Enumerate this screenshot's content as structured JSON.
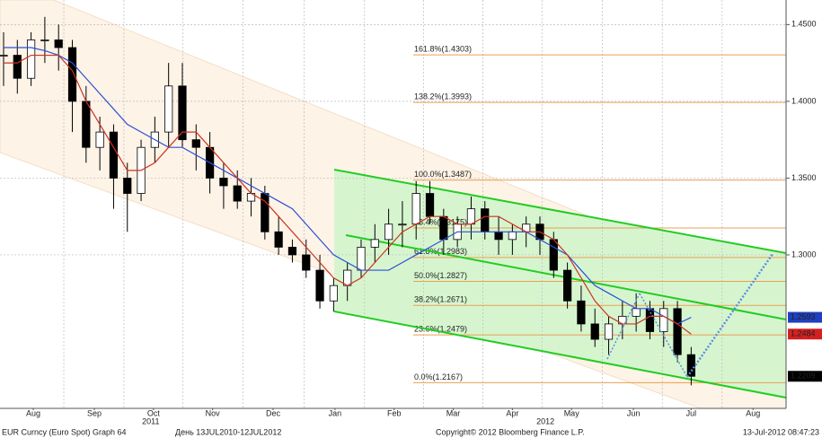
{
  "chart_data": {
    "type": "candlestick",
    "xlim": [
      -0.26,
      56.9
    ],
    "ylim": [
      1.2,
      1.466
    ],
    "xticks": [
      {
        "value": 2.16,
        "label": "Aug"
      },
      {
        "value": 6.6,
        "label": "Sep"
      },
      {
        "value": 10.9,
        "label": "Oct"
      },
      {
        "value": 15.2,
        "label": "Nov"
      },
      {
        "value": 19.6,
        "label": "Dec"
      },
      {
        "value": 24.1,
        "label": "Jan"
      },
      {
        "value": 28.4,
        "label": "Feb"
      },
      {
        "value": 32.7,
        "label": "Mar"
      },
      {
        "value": 37.0,
        "label": "Apr"
      },
      {
        "value": 41.3,
        "label": "May"
      },
      {
        "value": 45.8,
        "label": "Jun"
      },
      {
        "value": 50.0,
        "label": "Jul"
      },
      {
        "value": 54.5,
        "label": "Aug"
      }
    ],
    "year_labels": [
      {
        "value": 10.7,
        "label": "2011"
      },
      {
        "value": 39.4,
        "label": "2012"
      }
    ],
    "yticks": [
      {
        "value": 1.45,
        "label": "1.4500"
      },
      {
        "value": 1.4,
        "label": "1.4000"
      },
      {
        "value": 1.35,
        "label": "1.3500"
      },
      {
        "value": 1.3,
        "label": "1.3000"
      }
    ],
    "grid": true,
    "open": [
      1.43,
      1.43,
      1.415,
      1.44,
      1.44,
      1.435,
      1.4,
      1.37,
      1.38,
      1.35,
      1.34,
      1.37,
      1.38,
      1.41,
      1.375,
      1.37,
      1.35,
      1.345,
      1.335,
      1.34,
      1.315,
      1.305,
      1.3,
      1.29,
      1.27,
      1.28,
      1.29,
      1.305,
      1.31,
      1.32,
      1.32,
      1.34,
      1.325,
      1.31,
      1.32,
      1.33,
      1.315,
      1.31,
      1.315,
      1.32,
      1.31,
      1.29,
      1.27,
      1.255,
      1.245,
      1.255,
      1.26,
      1.265,
      1.25,
      1.265,
      1.235
    ],
    "high": [
      1.445,
      1.44,
      1.445,
      1.455,
      1.45,
      1.44,
      1.41,
      1.39,
      1.385,
      1.36,
      1.375,
      1.39,
      1.425,
      1.425,
      1.385,
      1.38,
      1.36,
      1.355,
      1.35,
      1.345,
      1.325,
      1.31,
      1.31,
      1.3,
      1.285,
      1.295,
      1.31,
      1.32,
      1.33,
      1.335,
      1.348,
      1.348,
      1.33,
      1.325,
      1.338,
      1.335,
      1.325,
      1.32,
      1.325,
      1.325,
      1.315,
      1.295,
      1.28,
      1.265,
      1.26,
      1.27,
      1.275,
      1.27,
      1.27,
      1.27,
      1.24
    ],
    "low": [
      1.41,
      1.405,
      1.41,
      1.425,
      1.42,
      1.38,
      1.36,
      1.355,
      1.33,
      1.315,
      1.335,
      1.36,
      1.37,
      1.37,
      1.355,
      1.34,
      1.33,
      1.33,
      1.325,
      1.31,
      1.3,
      1.295,
      1.285,
      1.265,
      1.263,
      1.27,
      1.285,
      1.295,
      1.3,
      1.305,
      1.31,
      1.32,
      1.3,
      1.305,
      1.31,
      1.31,
      1.3,
      1.3,
      1.305,
      1.3,
      1.285,
      1.265,
      1.25,
      1.24,
      1.235,
      1.245,
      1.25,
      1.245,
      1.24,
      1.23,
      1.215
    ],
    "close": [
      1.43,
      1.415,
      1.44,
      1.44,
      1.435,
      1.4,
      1.37,
      1.38,
      1.35,
      1.34,
      1.37,
      1.38,
      1.41,
      1.375,
      1.37,
      1.35,
      1.345,
      1.335,
      1.34,
      1.315,
      1.305,
      1.3,
      1.29,
      1.27,
      1.28,
      1.29,
      1.305,
      1.31,
      1.32,
      1.32,
      1.34,
      1.325,
      1.31,
      1.32,
      1.33,
      1.315,
      1.31,
      1.315,
      1.32,
      1.31,
      1.29,
      1.27,
      1.255,
      1.245,
      1.255,
      1.26,
      1.265,
      1.25,
      1.265,
      1.235,
      1.2209
    ],
    "lines": [
      {
        "color": "#2c4fd6",
        "values": [
          1.435,
          1.435,
          1.435,
          1.433,
          1.43,
          1.425,
          1.415,
          1.405,
          1.395,
          1.385,
          1.38,
          1.375,
          1.37,
          1.37,
          1.365,
          1.36,
          1.355,
          1.35,
          1.345,
          1.34,
          1.335,
          1.33,
          1.32,
          1.31,
          1.3,
          1.295,
          1.29,
          1.29,
          1.29,
          1.295,
          1.3,
          1.305,
          1.31,
          1.315,
          1.315,
          1.315,
          1.315,
          1.315,
          1.315,
          1.31,
          1.305,
          1.3,
          1.29,
          1.28,
          1.275,
          1.27,
          1.265,
          1.265,
          1.26,
          1.255,
          1.2593
        ]
      },
      {
        "color": "#cc3322",
        "values": [
          1.425,
          1.425,
          1.43,
          1.43,
          1.43,
          1.42,
          1.4,
          1.385,
          1.37,
          1.355,
          1.355,
          1.36,
          1.37,
          1.38,
          1.38,
          1.37,
          1.36,
          1.35,
          1.34,
          1.335,
          1.325,
          1.315,
          1.305,
          1.295,
          1.285,
          1.28,
          1.285,
          1.295,
          1.305,
          1.315,
          1.32,
          1.325,
          1.325,
          1.32,
          1.32,
          1.325,
          1.325,
          1.32,
          1.315,
          1.315,
          1.31,
          1.3,
          1.285,
          1.27,
          1.26,
          1.255,
          1.255,
          1.26,
          1.26,
          1.255,
          1.2484
        ]
      }
    ],
    "markers": [
      {
        "value": 1.2593,
        "label": "1.2593",
        "color": "#1f3fbf"
      },
      {
        "value": 1.2484,
        "label": "1.2484",
        "color": "#d42020"
      },
      {
        "value": 1.2209,
        "label": "1.2209",
        "color": "#000000"
      }
    ],
    "fib_levels": [
      {
        "value": 1.4303,
        "label": "161.8%(1.4303)"
      },
      {
        "value": 1.3993,
        "label": "138.2%(1.3993)"
      },
      {
        "value": 1.3487,
        "label": "100.0%(1.3487)"
      },
      {
        "value": 1.3175,
        "label": "76.4%(1.3175)"
      },
      {
        "value": 1.2983,
        "label": "61.8%(1.2983)"
      },
      {
        "value": 1.2827,
        "label": "50.0%(1.2827)"
      },
      {
        "value": 1.2671,
        "label": "38.2%(1.2671)"
      },
      {
        "value": 1.2479,
        "label": "23.6%(1.2479)"
      },
      {
        "value": 1.2167,
        "label": "0.0%(1.2167)"
      }
    ],
    "fib_color": "#e8a050",
    "footer": {
      "left": "EUR Curncy (Euro Spot) Graph 64",
      "range": "День 13JUL2010-12JUL2012",
      "copyright": "Copyright© 2012 Bloomberg Finance L.P.",
      "timestamp": "13-Jul-2012 08:47:23"
    }
  }
}
